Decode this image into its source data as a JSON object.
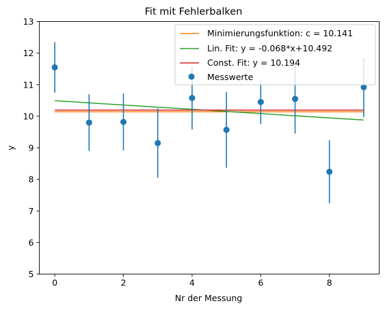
{
  "chart_data": {
    "type": "scatter",
    "title": "Fit mit Fehlerbalken",
    "xlabel": "Nr der Messung",
    "ylabel": "y",
    "xlim": [
      -0.45,
      9.45
    ],
    "ylim": [
      5,
      13
    ],
    "xticks": [
      0,
      2,
      4,
      6,
      8
    ],
    "yticks": [
      5,
      6,
      7,
      8,
      9,
      10,
      11,
      12,
      13
    ],
    "grid": false,
    "legend_location": "top-right",
    "measurements": {
      "name": "Messwerte",
      "color": "#1f77b4",
      "x": [
        0,
        1,
        2,
        3,
        4,
        5,
        6,
        7,
        8,
        9
      ],
      "y": [
        11.55,
        9.8,
        9.82,
        9.15,
        10.58,
        9.57,
        10.45,
        10.55,
        8.24,
        10.92
      ],
      "yerr": [
        0.8,
        0.9,
        0.9,
        1.1,
        1.0,
        1.2,
        0.7,
        1.1,
        1.0,
        0.95
      ]
    },
    "lines": [
      {
        "name": "Minimierungsfunktion: c = 10.141",
        "color": "#ff7f0e",
        "kind": "const",
        "c": 10.141
      },
      {
        "name": "Lin. Fit: y = -0.068*x+10.492",
        "color": "#2ca02c",
        "kind": "linear",
        "m": -0.068,
        "b": 10.492
      },
      {
        "name": "Const. Fit: y = 10.194",
        "color": "#d62728",
        "kind": "const",
        "c": 10.194
      }
    ]
  }
}
